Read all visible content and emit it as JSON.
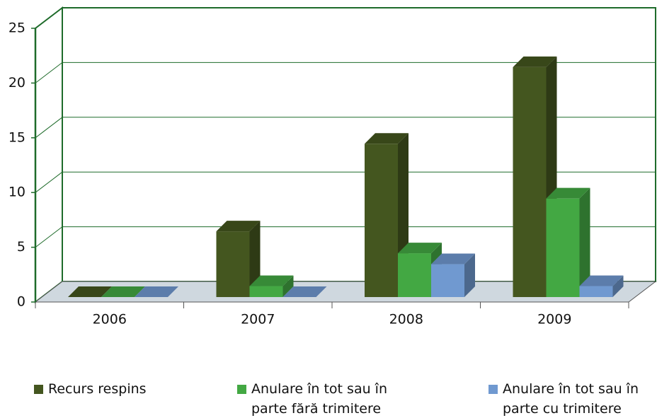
{
  "chart_data": {
    "type": "bar",
    "categories": [
      "2006",
      "2007",
      "2008",
      "2009"
    ],
    "series": [
      {
        "name": "Recurs respins",
        "color": "#44561f",
        "values": [
          0,
          6,
          14,
          21
        ]
      },
      {
        "name": "Anulare în tot sau în parte fără trimitere",
        "color": "#43a843",
        "values": [
          0,
          1,
          4,
          9
        ]
      },
      {
        "name": "Anulare în tot sau în parte cu trimitere",
        "color": "#7099d0",
        "values": [
          0,
          0,
          3,
          1
        ]
      }
    ],
    "ylim": [
      0,
      25
    ],
    "yticks": [
      0,
      5,
      10,
      15,
      20,
      25
    ],
    "grid": true,
    "legend": "bottom"
  }
}
